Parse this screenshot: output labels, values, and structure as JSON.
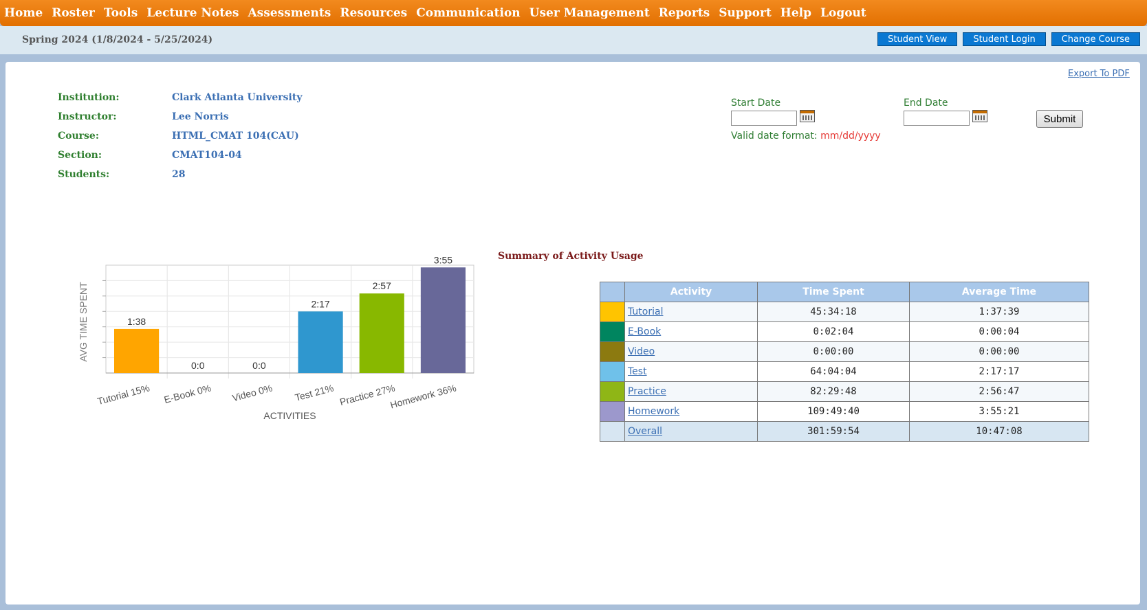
{
  "nav": [
    "Home",
    "Roster",
    "Tools",
    "Lecture Notes",
    "Assessments",
    "Resources",
    "Communication",
    "User Management",
    "Reports",
    "Support",
    "Help",
    "Logout"
  ],
  "term": "Spring 2024 (1/8/2024 - 5/25/2024)",
  "top_buttons": {
    "student_view": "Student View",
    "student_login": "Student Login",
    "change_course": "Change Course"
  },
  "export_label": "Export To PDF",
  "info": {
    "institution_label": "Institution:",
    "institution": "Clark Atlanta University",
    "instructor_label": "Instructor:",
    "instructor": "Lee Norris",
    "course_label": "Course:",
    "course": "HTML_CMAT 104(CAU)",
    "section_label": "Section:",
    "section": "CMAT104-04",
    "students_label": "Students:",
    "students": "28"
  },
  "dates": {
    "start_label": "Start Date",
    "end_label": "End Date",
    "valid_label": "Valid date format:",
    "valid_format": "mm/dd/yyyy",
    "submit": "Submit"
  },
  "summary_title": "Summary of Activity Usage",
  "chart_data": {
    "type": "bar",
    "categories": [
      "Tutorial 15%",
      "E-Book 0%",
      "Video 0%",
      "Test 21%",
      "Practice 27%",
      "Homework 36%"
    ],
    "values_minutes": [
      98,
      0,
      0,
      137,
      177,
      235
    ],
    "value_labels": [
      "1:38",
      "0:0",
      "0:0",
      "2:17",
      "2:57",
      "3:55"
    ],
    "colors": [
      "#ffa500",
      "#008b62",
      "#8b7a0f",
      "#2f97cf",
      "#88b800",
      "#686899"
    ],
    "xlabel": "ACTIVITIES",
    "ylabel": "AVG TIME SPENT",
    "ylim": [
      0,
      240
    ]
  },
  "table": {
    "headers": [
      "Activity",
      "Time Spent",
      "Average Time"
    ],
    "rows": [
      {
        "name": "Tutorial",
        "time": "45:34:18",
        "avg": "1:37:39",
        "color": "#ffc400"
      },
      {
        "name": "E-Book",
        "time": "0:02:04",
        "avg": "0:00:04",
        "color": "#00855f"
      },
      {
        "name": "Video",
        "time": "0:00:00",
        "avg": "0:00:00",
        "color": "#8c7a10"
      },
      {
        "name": "Test",
        "time": "64:04:04",
        "avg": "2:17:17",
        "color": "#6fc1ea"
      },
      {
        "name": "Practice",
        "time": "82:29:48",
        "avg": "2:56:47",
        "color": "#8fb616"
      },
      {
        "name": "Homework",
        "time": "109:49:40",
        "avg": "3:55:21",
        "color": "#9c98cc"
      }
    ],
    "overall": {
      "name": "Overall",
      "time": "301:59:54",
      "avg": "10:47:08"
    }
  }
}
